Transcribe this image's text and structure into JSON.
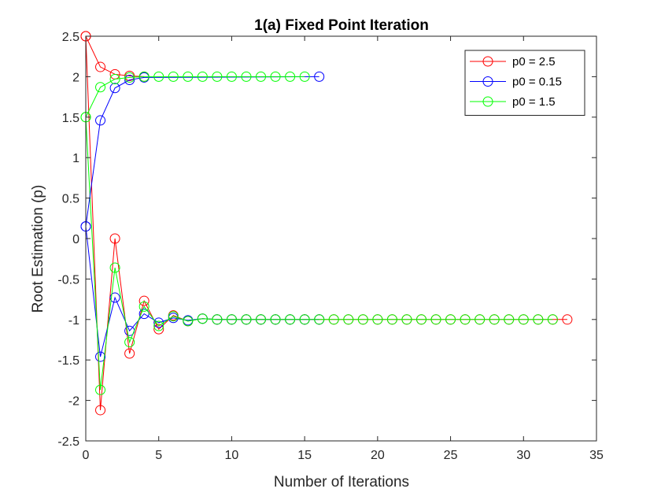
{
  "chart_data": {
    "type": "line",
    "title": "1(a) Fixed Point Iteration",
    "xlabel": "Number of Iterations",
    "ylabel": "Root Estimation (p)",
    "xlim": [
      0,
      35
    ],
    "ylim": [
      -2.5,
      2.5
    ],
    "xticks": [
      0,
      5,
      10,
      15,
      20,
      25,
      30,
      35
    ],
    "yticks": [
      -2.5,
      -2,
      -1.5,
      -1,
      -0.5,
      0,
      0.5,
      1,
      1.5,
      2,
      2.5
    ],
    "xtick_labels": [
      "0",
      "5",
      "10",
      "15",
      "20",
      "25",
      "30",
      "35"
    ],
    "ytick_labels": [
      "-2.5",
      "-2",
      "-1.5",
      "-1",
      "-0.5",
      "0",
      "0.5",
      "1",
      "1.5",
      "2",
      "2.5"
    ],
    "grid": false,
    "legend_position": "top-right",
    "series": [
      {
        "name": "p0 = 2.5",
        "color": "#ff0000",
        "marker": "circle",
        "x": [
          0,
          1,
          2,
          3,
          4,
          5,
          6,
          7,
          8,
          9,
          10,
          11,
          12,
          13,
          14,
          15,
          16,
          17,
          18,
          19,
          20,
          21,
          22,
          23,
          24,
          25,
          26,
          27,
          28,
          29,
          30,
          31,
          32,
          33
        ],
        "y": [
          2.5,
          -2.12,
          0.0,
          -1.42,
          -0.77,
          -1.12,
          -0.95,
          -1.02,
          -0.99,
          -1.0,
          -1.0,
          -1.0,
          -1.0,
          -1.0,
          -1.0,
          -1.0,
          -1.0,
          -1.0,
          -1.0,
          -1.0,
          -1.0,
          -1.0,
          -1.0,
          -1.0,
          -1.0,
          -1.0,
          -1.0,
          -1.0,
          -1.0,
          -1.0,
          -1.0,
          -1.0,
          -1.0,
          -1.0
        ]
      },
      {
        "name": "p0 = 0.15",
        "color": "#0000ff",
        "marker": "circle",
        "x": [
          0,
          1,
          2,
          3,
          4,
          5,
          6,
          7,
          8,
          9,
          10,
          11,
          12,
          13,
          14,
          15,
          16
        ],
        "y": [
          0.15,
          -1.46,
          -0.73,
          -1.14,
          -0.93,
          -1.04,
          -0.98,
          -1.01,
          -0.99,
          -1.0,
          -1.0,
          -1.0,
          -1.0,
          -1.0,
          -1.0,
          -1.0,
          -1.0
        ]
      },
      {
        "name": "p0 = 1.5",
        "color": "#00ff00",
        "marker": "circle",
        "x": [
          0,
          1,
          2,
          3,
          4,
          5,
          6,
          7,
          8,
          9,
          10,
          11,
          12,
          13,
          14,
          15,
          16,
          17,
          18,
          19,
          20,
          21,
          22,
          23,
          24,
          25,
          26,
          27,
          28,
          29,
          30,
          31,
          32
        ],
        "y": [
          1.5,
          -1.87,
          -0.36,
          -1.28,
          -0.84,
          -1.08,
          -0.96,
          -1.02,
          -0.99,
          -1.0,
          -1.0,
          -1.0,
          -1.0,
          -1.0,
          -1.0,
          -1.0,
          -1.0,
          -1.0,
          -1.0,
          -1.0,
          -1.0,
          -1.0,
          -1.0,
          -1.0,
          -1.0,
          -1.0,
          -1.0,
          -1.0,
          -1.0,
          -1.0,
          -1.0,
          -1.0,
          -1.0
        ]
      },
      {
        "color": "#ff0000",
        "marker": "circle",
        "x": [
          0,
          1,
          2,
          3,
          4
        ],
        "y": [
          2.5,
          2.12,
          2.03,
          2.01,
          2.0
        ]
      },
      {
        "color": "#0000ff",
        "marker": "circle",
        "x": [
          0,
          1,
          2,
          3,
          4,
          16
        ],
        "y": [
          0.15,
          1.46,
          1.86,
          1.96,
          1.99,
          2.0
        ]
      },
      {
        "color": "#00ff00",
        "marker": "circle",
        "x": [
          0,
          1,
          2,
          3,
          4,
          5,
          6,
          7,
          8,
          9,
          10,
          11,
          12,
          13,
          14,
          15
        ],
        "y": [
          1.5,
          1.87,
          1.97,
          1.99,
          2.0,
          2.0,
          2.0,
          2.0,
          2.0,
          2.0,
          2.0,
          2.0,
          2.0,
          2.0,
          2.0,
          2.0
        ]
      }
    ]
  }
}
